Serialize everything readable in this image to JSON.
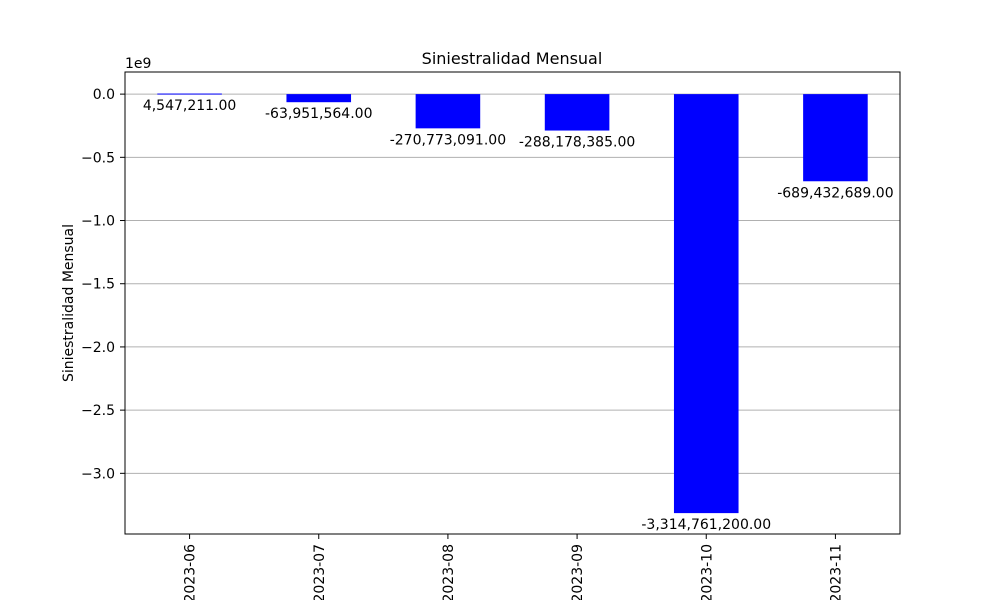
{
  "chart_data": {
    "type": "bar",
    "title": "Siniestralidad Mensual",
    "ylabel": "Siniestralidad Mensual",
    "xlabel": "",
    "y_multiplier_label": "1e9",
    "categories": [
      "2023-06",
      "2023-07",
      "2023-08",
      "2023-09",
      "2023-10",
      "2023-11"
    ],
    "values": [
      4547211,
      -63951564,
      -270773091,
      -288178385,
      -3314761200,
      -689432689
    ],
    "value_labels": [
      "4,547,211.00",
      "-63,951,564.00",
      "-270,773,091.00",
      "-288,178,385.00",
      "-3,314,761,200.00",
      "-689,432,689.00"
    ],
    "ylim": [
      -3480000000.0,
      175000000.0
    ],
    "yticks": [
      0,
      -500000000.0,
      -1000000000.0,
      -1500000000.0,
      -2000000000.0,
      -2500000000.0,
      -3000000000.0
    ],
    "ytick_labels": [
      "0.0",
      "−0.5",
      "−1.0",
      "−1.5",
      "−2.0",
      "−2.5",
      "−3.0"
    ],
    "bar_color": "#0000ff",
    "grid": true
  }
}
